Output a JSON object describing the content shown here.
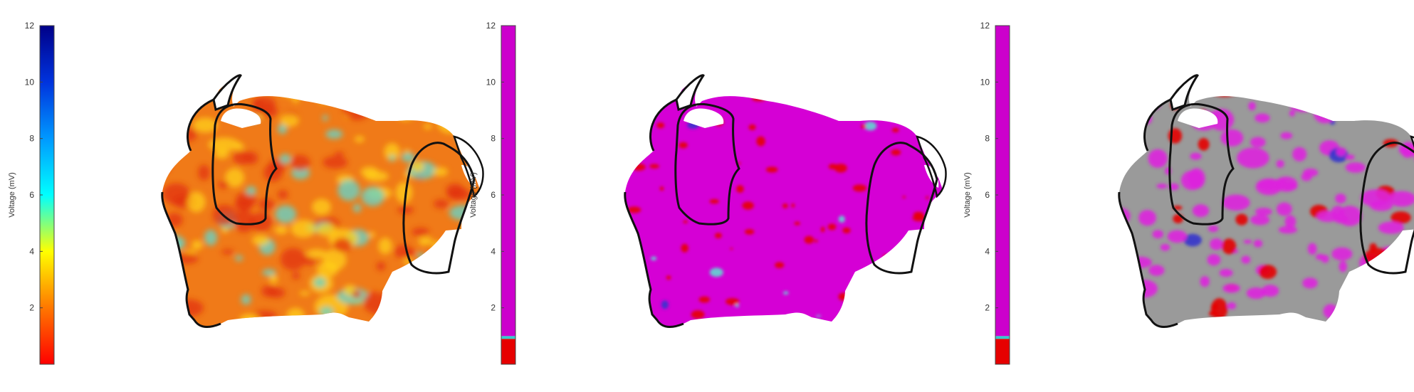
{
  "chart_data": [
    {
      "type": "heatmap",
      "title": "",
      "ylabel": "Voltage (mV)",
      "ylim": [
        0,
        12
      ],
      "yticks": [
        2,
        4,
        6,
        8,
        10,
        12
      ],
      "colorbar": {
        "mode": "continuous",
        "stops": [
          {
            "value": 0,
            "color": "#ff0000"
          },
          {
            "value": 2,
            "color": "#ff7700"
          },
          {
            "value": 4,
            "color": "#ffff00"
          },
          {
            "value": 6,
            "color": "#00ffff"
          },
          {
            "value": 8,
            "color": "#0099ff"
          },
          {
            "value": 10,
            "color": "#0033dd"
          },
          {
            "value": 12,
            "color": "#000088"
          }
        ]
      },
      "surface": {
        "base_color": "#f07a18",
        "highlight_colors": [
          "#ffd21a",
          "#e23010",
          "#5fd8d0"
        ],
        "outline_color": "#111111"
      }
    },
    {
      "type": "heatmap",
      "title": "",
      "ylabel": "Voltage (mV)",
      "ylim": [
        0,
        12
      ],
      "yticks": [
        2,
        4,
        6,
        8,
        10,
        12
      ],
      "colorbar": {
        "mode": "threshold",
        "segments": [
          {
            "from": 0,
            "to": 0.9,
            "color": "#e60000"
          },
          {
            "from": 0.9,
            "to": 1.0,
            "color": "#33cccc"
          },
          {
            "from": 1.0,
            "to": 12,
            "color": "#cc00cc"
          }
        ]
      },
      "surface": {
        "base_color": "#d500d5",
        "highlight_colors": [
          "#e60000",
          "#5fd8d0",
          "#3333cc"
        ],
        "outline_color": "#111111"
      }
    },
    {
      "type": "heatmap",
      "title": "",
      "ylabel": "Voltage (mV)",
      "ylim": [
        0,
        12
      ],
      "yticks": [
        2,
        4,
        6,
        8,
        10,
        12
      ],
      "colorbar": {
        "mode": "threshold",
        "segments": [
          {
            "from": 0,
            "to": 0.9,
            "color": "#e60000"
          },
          {
            "from": 0.9,
            "to": 1.0,
            "color": "#33cccc"
          },
          {
            "from": 1.0,
            "to": 12,
            "color": "#cc00cc"
          }
        ]
      },
      "surface": {
        "base_color": "#9a9a9a",
        "highlight_colors": [
          "#dd22dd",
          "#e60000",
          "#3333cc"
        ],
        "outline_color": "#111111"
      }
    }
  ]
}
